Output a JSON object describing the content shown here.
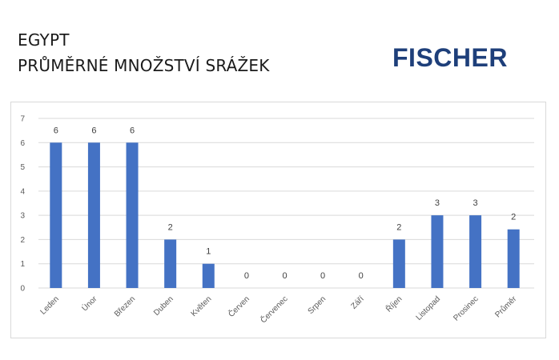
{
  "header": {
    "title_line1": "EGYPT",
    "title_line2": "PRŮMĚRNÉ MNOŽSTVÍ SRÁŽEK"
  },
  "logo": {
    "text": "FISCHER",
    "color": "#1e3f7a"
  },
  "chart_data": {
    "type": "bar",
    "categories": [
      "Leden",
      "Únor",
      "Březen",
      "Duben",
      "Květen",
      "Červen",
      "Červenec",
      "Srpen",
      "Září",
      "Říjen",
      "Listopad",
      "Prosinec",
      "Průměr"
    ],
    "values": [
      6,
      6,
      6,
      2,
      1,
      0,
      0,
      0,
      0,
      2,
      3,
      3,
      2.42
    ],
    "data_labels": [
      "6",
      "6",
      "6",
      "2",
      "1",
      "0",
      "0",
      "0",
      "0",
      "2",
      "3",
      "3",
      "2"
    ],
    "title": "",
    "xlabel": "",
    "ylabel": "",
    "ylim": [
      0,
      7
    ],
    "yticks": [
      "0",
      "1",
      "2",
      "3",
      "4",
      "5",
      "6",
      "7"
    ],
    "grid": true,
    "legend": "none",
    "bar_color": "#4472c4",
    "grid_color": "#d9d9d9"
  }
}
